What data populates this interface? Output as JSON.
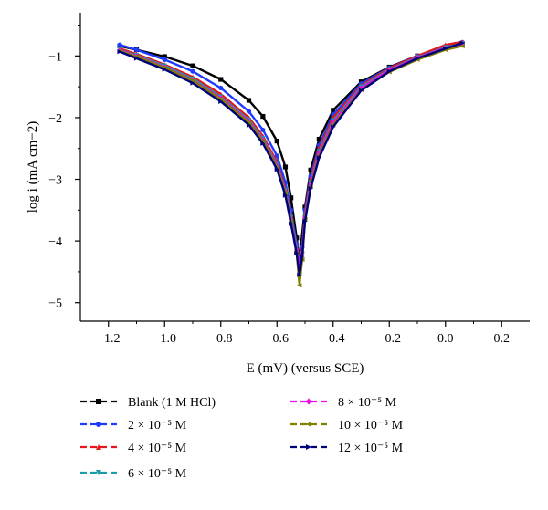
{
  "chart_data": {
    "type": "line",
    "xlabel": "E (mV) (versus SCE)",
    "ylabel": "log i (mA cm−2)",
    "xlim": [
      -1.3,
      0.3
    ],
    "ylim": [
      -5.3,
      -0.3
    ],
    "xticks": [
      -1.2,
      -1.0,
      -0.8,
      -0.6,
      -0.4,
      -0.2,
      0.0,
      0.2
    ],
    "xtick_labels": [
      "−1.2",
      "−1.0",
      "−0.8",
      "−0.6",
      "−0.4",
      "−0.2",
      "0.0",
      "0.2"
    ],
    "yticks": [
      -1,
      -2,
      -3,
      -4,
      -5
    ],
    "ytick_labels": [
      "−1",
      "−2",
      "−3",
      "−4",
      "−5"
    ],
    "grid": false,
    "legend_position": "bottom",
    "series": [
      {
        "name": "Blank (1 M HCl)",
        "color": "#000000",
        "marker": "square",
        "x": [
          -1.16,
          -1.1,
          -1.0,
          -0.9,
          -0.8,
          -0.7,
          -0.65,
          -0.6,
          -0.57,
          -0.55,
          -0.53,
          -0.52,
          -0.5,
          -0.48,
          -0.45,
          -0.4,
          -0.3,
          -0.2,
          -0.1,
          0.0,
          0.06
        ],
        "y": [
          -0.84,
          -0.9,
          -1.01,
          -1.16,
          -1.38,
          -1.72,
          -1.98,
          -2.38,
          -2.8,
          -3.3,
          -3.95,
          -4.3,
          -3.45,
          -2.85,
          -2.35,
          -1.88,
          -1.42,
          -1.18,
          -1.0,
          -0.86,
          -0.8
        ]
      },
      {
        "name": "2 × 10⁻⁵ M",
        "color": "#1f3bff",
        "marker": "circle",
        "x": [
          -1.16,
          -1.1,
          -1.0,
          -0.9,
          -0.8,
          -0.7,
          -0.65,
          -0.6,
          -0.57,
          -0.55,
          -0.53,
          -0.52,
          -0.51,
          -0.5,
          -0.48,
          -0.45,
          -0.4,
          -0.3,
          -0.2,
          -0.1,
          0.0,
          0.06
        ],
        "y": [
          -0.82,
          -0.9,
          -1.06,
          -1.25,
          -1.52,
          -1.9,
          -2.2,
          -2.62,
          -3.05,
          -3.5,
          -4.05,
          -4.35,
          -4.1,
          -3.5,
          -2.95,
          -2.45,
          -1.95,
          -1.45,
          -1.19,
          -1.0,
          -0.84,
          -0.78
        ]
      },
      {
        "name": "4 × 10⁻⁵ M",
        "color": "#e8141e",
        "marker": "triangle-up",
        "x": [
          -1.16,
          -1.1,
          -1.0,
          -0.9,
          -0.8,
          -0.7,
          -0.65,
          -0.6,
          -0.57,
          -0.55,
          -0.53,
          -0.52,
          -0.51,
          -0.5,
          -0.48,
          -0.45,
          -0.4,
          -0.3,
          -0.2,
          -0.1,
          0.0,
          0.06
        ],
        "y": [
          -0.88,
          -0.97,
          -1.14,
          -1.34,
          -1.62,
          -2.0,
          -2.3,
          -2.72,
          -3.15,
          -3.6,
          -4.1,
          -4.4,
          -4.15,
          -3.55,
          -3.0,
          -2.5,
          -2.0,
          -1.48,
          -1.2,
          -1.0,
          -0.82,
          -0.77
        ]
      },
      {
        "name": "6 × 10⁻⁵ M",
        "color": "#1a9ba8",
        "marker": "triangle-down",
        "x": [
          -1.16,
          -1.1,
          -1.0,
          -0.9,
          -0.8,
          -0.7,
          -0.65,
          -0.6,
          -0.57,
          -0.55,
          -0.53,
          -0.52,
          -0.51,
          -0.5,
          -0.48,
          -0.45,
          -0.4,
          -0.3,
          -0.2,
          -0.1,
          0.0,
          0.06
        ],
        "y": [
          -0.9,
          -0.99,
          -1.16,
          -1.37,
          -1.66,
          -2.04,
          -2.34,
          -2.76,
          -3.18,
          -3.62,
          -4.1,
          -4.45,
          -4.2,
          -3.6,
          -3.05,
          -2.55,
          -2.05,
          -1.5,
          -1.22,
          -1.02,
          -0.86,
          -0.8
        ]
      },
      {
        "name": "8 × 10⁻⁵ M",
        "color": "#e60fe6",
        "marker": "diamond",
        "x": [
          -1.16,
          -1.1,
          -1.0,
          -0.9,
          -0.8,
          -0.7,
          -0.65,
          -0.6,
          -0.57,
          -0.55,
          -0.53,
          -0.52,
          -0.51,
          -0.5,
          -0.48,
          -0.45,
          -0.4,
          -0.3,
          -0.2,
          -0.1,
          0.0,
          0.06
        ],
        "y": [
          -0.91,
          -1.0,
          -1.18,
          -1.39,
          -1.68,
          -2.06,
          -2.36,
          -2.78,
          -3.2,
          -3.65,
          -4.15,
          -4.45,
          -4.2,
          -3.62,
          -3.08,
          -2.58,
          -2.08,
          -1.52,
          -1.23,
          -1.03,
          -0.87,
          -0.81
        ]
      },
      {
        "name": "10 × 10⁻⁵ M",
        "color": "#808000",
        "marker": "triangle-left",
        "x": [
          -1.16,
          -1.1,
          -1.0,
          -0.9,
          -0.8,
          -0.7,
          -0.65,
          -0.6,
          -0.57,
          -0.55,
          -0.53,
          -0.52,
          -0.51,
          -0.5,
          -0.48,
          -0.45,
          -0.4,
          -0.3,
          -0.2,
          -0.1,
          0.0,
          0.06
        ],
        "y": [
          -0.92,
          -1.01,
          -1.19,
          -1.4,
          -1.7,
          -2.08,
          -2.38,
          -2.8,
          -3.22,
          -3.68,
          -4.2,
          -4.72,
          -4.3,
          -3.65,
          -3.12,
          -2.62,
          -2.12,
          -1.55,
          -1.26,
          -1.06,
          -0.9,
          -0.84
        ]
      },
      {
        "name": "12 × 10⁻⁵ M",
        "color": "#00007a",
        "marker": "triangle-right",
        "x": [
          -1.16,
          -1.1,
          -1.0,
          -0.9,
          -0.8,
          -0.7,
          -0.65,
          -0.6,
          -0.57,
          -0.55,
          -0.53,
          -0.52,
          -0.51,
          -0.5,
          -0.48,
          -0.45,
          -0.4,
          -0.3,
          -0.2,
          -0.1,
          0.0,
          0.06
        ],
        "y": [
          -0.93,
          -1.04,
          -1.22,
          -1.44,
          -1.74,
          -2.12,
          -2.42,
          -2.84,
          -3.26,
          -3.72,
          -4.2,
          -4.55,
          -4.25,
          -3.68,
          -3.15,
          -2.65,
          -2.15,
          -1.56,
          -1.25,
          -1.04,
          -0.88,
          -0.79
        ]
      }
    ]
  }
}
